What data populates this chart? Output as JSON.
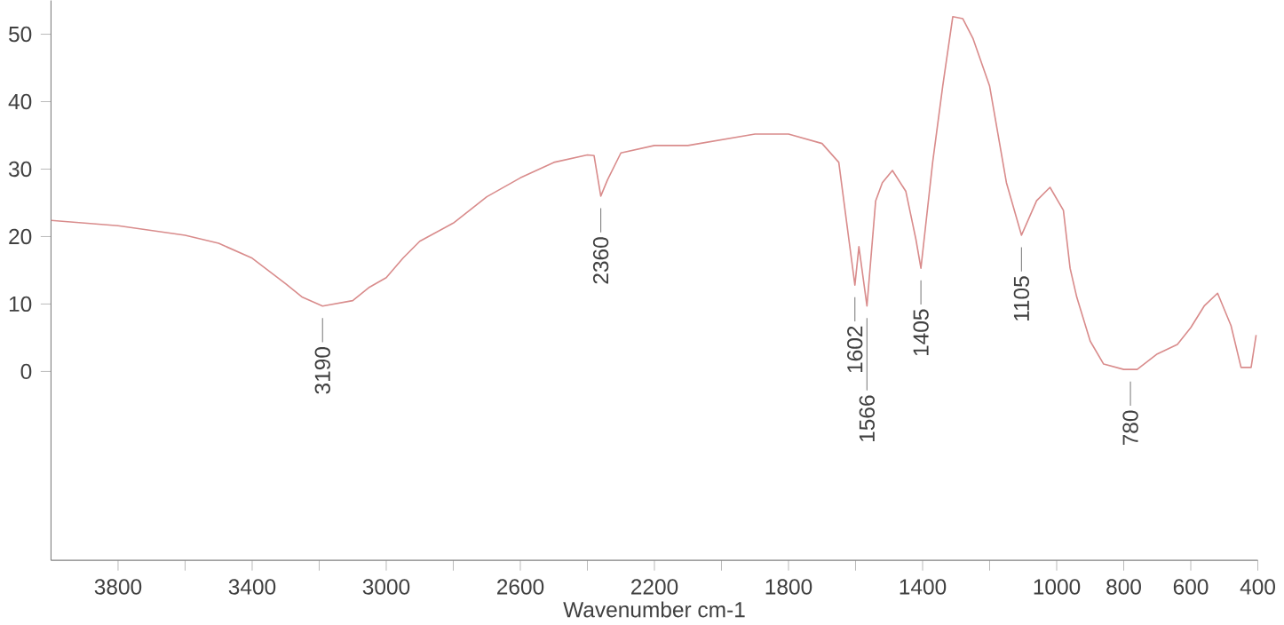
{
  "chart_data": {
    "type": "line",
    "xlabel": "Wavenumber cm-1",
    "x": [
      4000,
      3800,
      3600,
      3500,
      3400,
      3300,
      3250,
      3190,
      3100,
      3050,
      3000,
      2950,
      2900,
      2800,
      2700,
      2600,
      2500,
      2400,
      2380,
      2360,
      2340,
      2300,
      2200,
      2100,
      1900,
      1800,
      1700,
      1650,
      1620,
      1602,
      1590,
      1566,
      1540,
      1520,
      1490,
      1450,
      1420,
      1405,
      1370,
      1340,
      1310,
      1280,
      1250,
      1200,
      1150,
      1105,
      1060,
      1020,
      980,
      960,
      940,
      900,
      860,
      800,
      760,
      700,
      640,
      600,
      560,
      520,
      480,
      450,
      420,
      405
    ],
    "series": [
      {
        "color": "#d98c8c",
        "values": [
          22.4,
          21.6,
          20.2,
          19,
          16.8,
          13,
          11,
          9.7,
          10.5,
          12.5,
          13.9,
          16.8,
          19.3,
          22,
          25.9,
          28.7,
          31,
          32.1,
          32,
          26,
          28.4,
          32.4,
          33.5,
          33.5,
          35.2,
          35.2,
          33.8,
          31,
          19.6,
          12.8,
          18.5,
          9.7,
          25.3,
          28,
          29.8,
          26.7,
          19.6,
          15.3,
          31,
          42.3,
          52.6,
          52.3,
          49.4,
          42.3,
          28,
          20.2,
          25.3,
          27.3,
          23.9,
          15.3,
          11,
          4.5,
          1.1,
          0.3,
          0.3,
          2.6,
          4,
          6.5,
          9.7,
          11.6,
          6.8,
          0.6,
          0.6,
          5.4
        ]
      }
    ],
    "xlim": [
      4000,
      400
    ],
    "xticks": [
      {
        "value": 3800,
        "label": "3800"
      },
      {
        "value": 3600,
        "label": null
      },
      {
        "value": 3400,
        "label": "3400"
      },
      {
        "value": 3200,
        "label": null
      },
      {
        "value": 3000,
        "label": "3000"
      },
      {
        "value": 2800,
        "label": null
      },
      {
        "value": 2600,
        "label": "2600"
      },
      {
        "value": 2400,
        "label": null
      },
      {
        "value": 2200,
        "label": "2200"
      },
      {
        "value": 2000,
        "label": null
      },
      {
        "value": 1800,
        "label": "1800"
      },
      {
        "value": 1600,
        "label": null
      },
      {
        "value": 1400,
        "label": "1400"
      },
      {
        "value": 1200,
        "label": null
      },
      {
        "value": 1000,
        "label": "1000"
      },
      {
        "value": 800,
        "label": "800"
      },
      {
        "value": 600,
        "label": "600"
      },
      {
        "value": 400,
        "label": "400"
      }
    ],
    "ylim": [
      -28,
      55
    ],
    "yticks": [
      0,
      10,
      20,
      30,
      40,
      50
    ],
    "annotations": [
      {
        "text": "3190",
        "x": 3190,
        "y": 9.7
      },
      {
        "text": "2360",
        "x": 2360,
        "y": 26
      },
      {
        "text": "1602",
        "x": 1602,
        "y": 12.8
      },
      {
        "text": "1566",
        "x": 1566,
        "y": 9.7
      },
      {
        "text": "1405",
        "x": 1405,
        "y": 15.3
      },
      {
        "text": "1105",
        "x": 1105,
        "y": 20.2
      },
      {
        "text": "780",
        "x": 780,
        "y": 0.3
      }
    ]
  }
}
